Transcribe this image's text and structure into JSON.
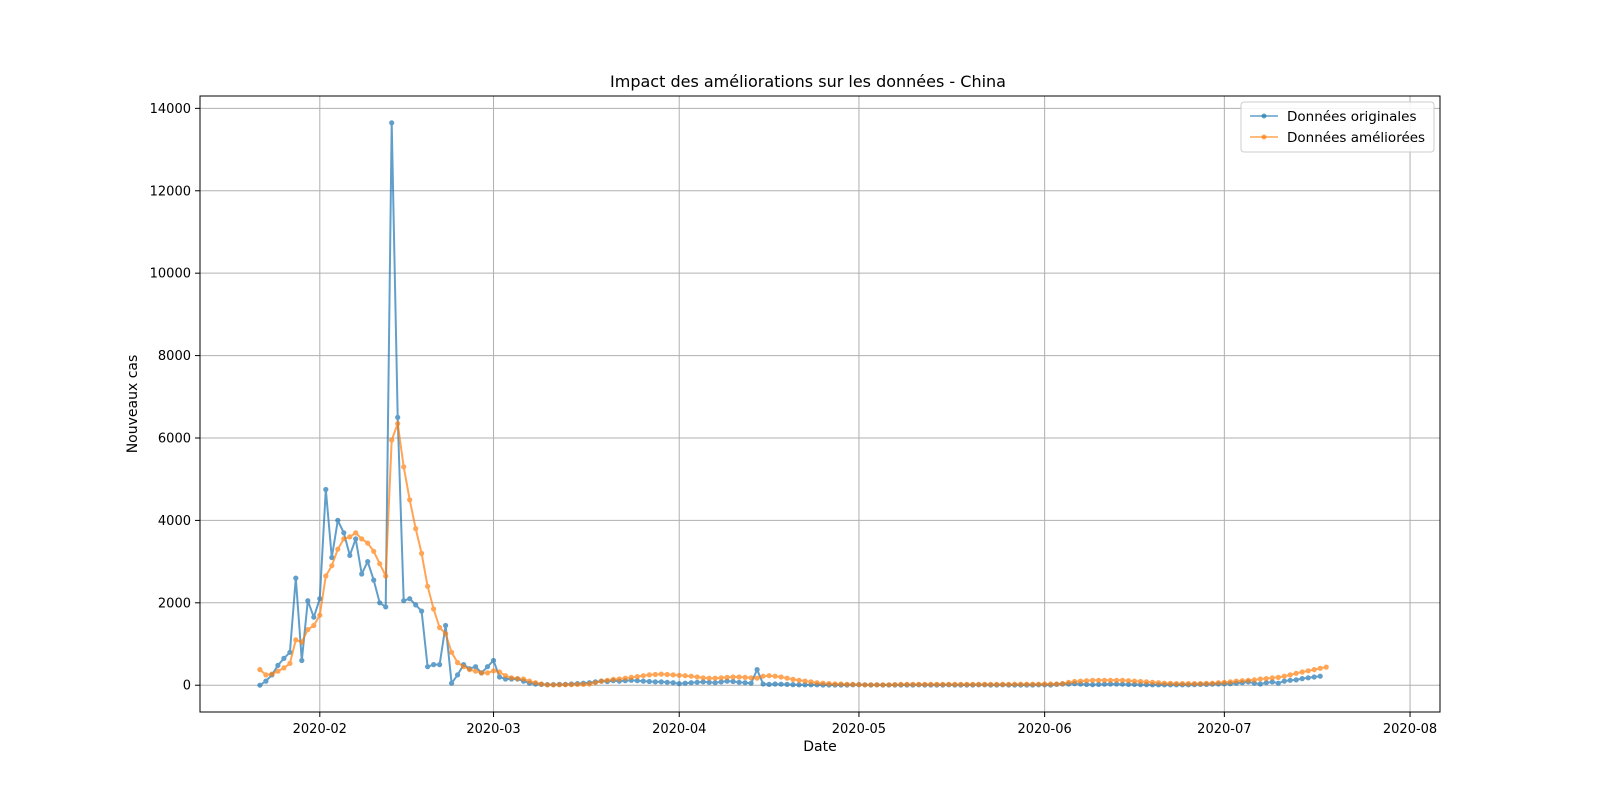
{
  "chart_data": {
    "type": "line",
    "title": "Impact des améliorations sur les données - China",
    "xlabel": "Date",
    "ylabel": "Nouveaux cas",
    "x_start": "2020-01-22",
    "x_end": "2020-07-27",
    "xlim": [
      "2020-01-12",
      "2020-08-06"
    ],
    "ylim": [
      -650,
      14300
    ],
    "x_ticks": [
      "2020-02",
      "2020-03",
      "2020-04",
      "2020-05",
      "2020-06",
      "2020-07",
      "2020-08"
    ],
    "y_ticks": [
      0,
      2000,
      4000,
      6000,
      8000,
      10000,
      12000,
      14000
    ],
    "grid": true,
    "legend_position": "top-right",
    "series": [
      {
        "name": "Données originales",
        "color": "#1f77b4",
        "values": [
          0,
          100,
          250,
          480,
          650,
          800,
          2600,
          600,
          2050,
          1650,
          2100,
          4750,
          3100,
          4000,
          3700,
          3150,
          3550,
          2700,
          3000,
          2550,
          2000,
          1900,
          13650,
          6500,
          2050,
          2100,
          1950,
          1800,
          450,
          500,
          500,
          1450,
          50,
          250,
          500,
          400,
          450,
          300,
          450,
          600,
          200,
          150,
          150,
          150,
          100,
          50,
          30,
          20,
          15,
          15,
          20,
          20,
          30,
          40,
          50,
          60,
          80,
          100,
          90,
          110,
          100,
          110,
          120,
          110,
          100,
          90,
          80,
          80,
          70,
          60,
          40,
          50,
          60,
          70,
          80,
          70,
          60,
          80,
          100,
          90,
          70,
          60,
          50,
          380,
          30,
          20,
          30,
          25,
          20,
          15,
          10,
          10,
          10,
          10,
          5,
          5,
          5,
          5,
          5,
          10,
          15,
          10,
          5,
          10,
          5,
          5,
          5,
          5,
          5,
          5,
          10,
          5,
          5,
          5,
          5,
          10,
          5,
          5,
          5,
          5,
          10,
          10,
          5,
          5,
          10,
          5,
          5,
          5,
          5,
          5,
          10,
          10,
          5,
          20,
          30,
          30,
          40,
          30,
          20,
          15,
          20,
          25,
          30,
          30,
          25,
          20,
          20,
          15,
          15,
          10,
          10,
          10,
          10,
          10,
          10,
          10,
          15,
          20,
          20,
          25,
          30,
          35,
          40,
          50,
          60,
          80,
          50,
          30,
          60,
          80,
          50,
          100,
          120,
          130,
          160,
          180,
          200,
          220
        ]
      },
      {
        "name": "Données améliorées",
        "color": "#ff7f0e",
        "values": [
          380,
          250,
          270,
          340,
          420,
          530,
          1100,
          1050,
          1350,
          1450,
          1700,
          2650,
          2900,
          3300,
          3550,
          3600,
          3700,
          3550,
          3450,
          3250,
          2950,
          2650,
          5950,
          6350,
          5300,
          4500,
          3800,
          3200,
          2400,
          1850,
          1400,
          1250,
          800,
          550,
          450,
          380,
          340,
          300,
          300,
          350,
          320,
          230,
          180,
          160,
          150,
          100,
          60,
          30,
          10,
          10,
          10,
          15,
          15,
          20,
          20,
          30,
          60,
          100,
          120,
          140,
          150,
          170,
          190,
          210,
          230,
          250,
          260,
          270,
          260,
          250,
          240,
          230,
          220,
          200,
          180,
          170,
          170,
          180,
          190,
          200,
          200,
          190,
          180,
          170,
          220,
          230,
          220,
          200,
          170,
          140,
          120,
          100,
          80,
          60,
          50,
          40,
          30,
          30,
          20,
          20,
          15,
          10,
          10,
          10,
          10,
          10,
          15,
          20,
          20,
          20,
          20,
          20,
          20,
          20,
          20,
          20,
          20,
          20,
          20,
          20,
          20,
          20,
          20,
          20,
          20,
          20,
          25,
          25,
          25,
          25,
          25,
          30,
          30,
          30,
          40,
          70,
          90,
          100,
          110,
          120,
          120,
          120,
          120,
          120,
          120,
          110,
          100,
          90,
          80,
          70,
          60,
          50,
          45,
          40,
          40,
          40,
          40,
          40,
          45,
          50,
          60,
          70,
          80,
          100,
          110,
          120,
          130,
          150,
          160,
          180,
          190,
          220,
          250,
          290,
          320,
          350,
          380,
          410,
          440
        ]
      }
    ]
  }
}
